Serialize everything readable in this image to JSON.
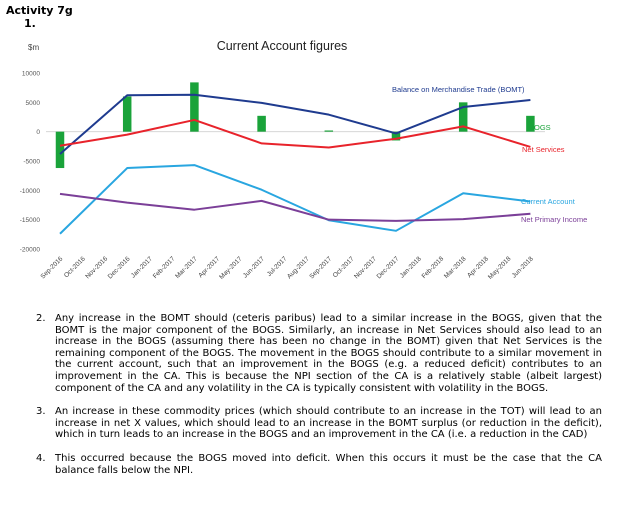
{
  "header": {
    "activity": "Activity 7g",
    "part": "1."
  },
  "chart_data": {
    "type": "line",
    "title": "Current Account figures",
    "ylabel": "$m",
    "ylim": [
      -20000,
      10000
    ],
    "yticks": [
      10000,
      5000,
      0,
      -5000,
      -10000,
      -15000,
      -20000
    ],
    "categories": [
      "Sep-2016",
      "Oct-2016",
      "Nov-2016",
      "Dec-2016",
      "Jan-2017",
      "Feb-2017",
      "Mar-2017",
      "Apr-2017",
      "May-2017",
      "Jun-2017",
      "Jul-2017",
      "Aug-2017",
      "Sep-2017",
      "Oct-2017",
      "Nov-2017",
      "Dec-2017",
      "Jan-2018",
      "Feb-2018",
      "Mar-2018",
      "Apr-2018",
      "May-2018",
      "Jun-2018"
    ],
    "bars": {
      "name": "BOGS",
      "color": "#1aa33a",
      "values": [
        -6200,
        null,
        null,
        6000,
        null,
        null,
        8400,
        null,
        null,
        2700,
        null,
        null,
        200,
        null,
        null,
        -1500,
        null,
        null,
        5000,
        null,
        null,
        2700
      ]
    },
    "series": [
      {
        "name": "Balance on Merchandise Trade (BOMT)",
        "color": "#1f3b8f",
        "x": [
          "Sep-2016",
          "Dec-2016",
          "Mar-2017",
          "Jun-2017",
          "Sep-2017",
          "Dec-2017",
          "Mar-2018",
          "Jun-2018"
        ],
        "values": [
          -3800,
          6200,
          6300,
          4900,
          2900,
          -300,
          4200,
          5400
        ]
      },
      {
        "name": "Net Services",
        "color": "#e8232b",
        "x": [
          "Sep-2016",
          "Dec-2016",
          "Mar-2017",
          "Jun-2017",
          "Sep-2017",
          "Dec-2017",
          "Mar-2018",
          "Jun-2018"
        ],
        "values": [
          -2400,
          -500,
          2000,
          -2000,
          -2700,
          -1200,
          900,
          -2600
        ]
      },
      {
        "name": "Current Account",
        "color": "#29a6e0",
        "x": [
          "Sep-2016",
          "Dec-2016",
          "Mar-2017",
          "Jun-2017",
          "Sep-2017",
          "Dec-2017",
          "Mar-2018",
          "Jun-2018"
        ],
        "values": [
          -17400,
          -6200,
          -5700,
          -9900,
          -15100,
          -16900,
          -10500,
          -11900
        ]
      },
      {
        "name": "Net Primary Income",
        "color": "#7b3f98",
        "x": [
          "Sep-2016",
          "Dec-2016",
          "Mar-2017",
          "Jun-2017",
          "Sep-2017",
          "Dec-2017",
          "Mar-2018",
          "Jun-2018"
        ],
        "values": [
          -10600,
          -12100,
          -13300,
          -11800,
          -15000,
          -15200,
          -14900,
          -14000
        ]
      }
    ],
    "grid": false
  },
  "answers": [
    {
      "num": "2.",
      "text": "Any increase in the BOMT should (ceteris paribus) lead to a similar increase in the BOGS, given that the BOMT is the major component of the BOGS.  Similarly, an increase in Net Services should also lead to an increase in the BOGS (assuming there has been no change in the BOMT) given that Net Services is the remaining component of the BOGS.  The movement in the BOGS should contribute to a similar movement in the current account, such that an improvement in the BOGS (e.g. a reduced deficit) contributes to an improvement in the CA.  This is because the NPI section of the CA is a relatively stable (albeit largest) component of the CA and any volatility in the CA is typically consistent with volatility in the BOGS."
    },
    {
      "num": "3.",
      "text": "An increase in these commodity prices (which should contribute to an increase in the TOT) will lead to an increase in net X values, which should lead to an increase in the BOMT surplus (or reduction in the deficit), which in turn leads to an increase in the BOGS and an improvement in the CA (i.e. a reduction in the CAD)"
    },
    {
      "num": "4.",
      "text": "This occurred because the BOGS moved into deficit.  When this occurs it must be the case that the CA balance falls below the NPI."
    }
  ]
}
